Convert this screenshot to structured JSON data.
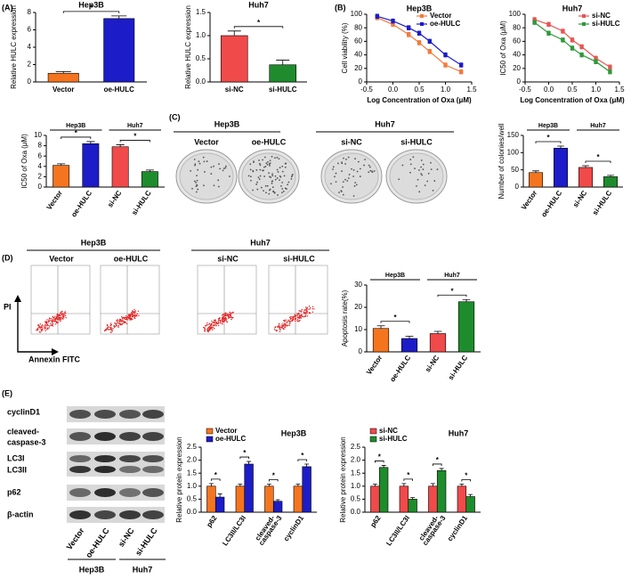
{
  "panel_labels": [
    "(A)",
    "(B)",
    "(C)",
    "(D)",
    "(E)"
  ],
  "colony": {
    "groups": [
      "Hep3B",
      "Huh7"
    ],
    "labels": [
      "Vector",
      "oe-HULC",
      "si-NC",
      "si-HULC"
    ]
  },
  "flow": {
    "groups": [
      "Hep3B",
      "Huh7"
    ],
    "labels": [
      "Vector",
      "oe-HULC",
      "si-NC",
      "si-HULC"
    ],
    "y_axis": "PI",
    "x_axis": "Annexin FITC"
  },
  "blot": {
    "proteins": [
      [
        "cyclinD1"
      ],
      [
        "cleaved-",
        "caspase-3"
      ],
      [
        "LC3I",
        "LC3II"
      ],
      [
        "p62"
      ],
      [
        "β-actin"
      ]
    ],
    "lanes": [
      "Vector",
      "oe-HULC",
      "si-NC",
      "si-HULC"
    ],
    "groups": [
      "Hep3B",
      "Huh7"
    ]
  },
  "chart_data": [
    {
      "type": "bar",
      "title": "Hep3B",
      "ylabel": "Relative HULC expression",
      "categories": [
        "Vector",
        "oe-HULC"
      ],
      "values": [
        1,
        7.3
      ],
      "errors": [
        0.2,
        0.3
      ],
      "colors": [
        "#f5751f",
        "#1c1cc8"
      ],
      "ylim": [
        0,
        8
      ],
      "yticks": [
        0,
        2,
        4,
        6,
        8
      ],
      "annotations": [
        "*"
      ]
    },
    {
      "type": "bar",
      "title": "Huh7",
      "ylabel": "Relative HULC expression",
      "categories": [
        "si-NC",
        "si-HULC"
      ],
      "values": [
        1,
        0.37
      ],
      "errors": [
        0.1,
        0.1
      ],
      "colors": [
        "#f04a4a",
        "#1e8c2c"
      ],
      "ylim": [
        0,
        1.5
      ],
      "yticks": [
        {
          "value": 0,
          "label": "0.0"
        },
        0.5,
        {
          "value": 1,
          "label": "1.0"
        },
        1.5
      ],
      "annotations": [
        "*"
      ]
    },
    {
      "type": "line",
      "title": "Hep3B",
      "xlabel": "Log Concentration of Oxa (μM)",
      "ylabel": "Cell viability (%)",
      "x": [
        -0.3,
        0,
        0.3,
        0.5,
        0.7,
        1,
        1.3
      ],
      "series": [
        {
          "name": "Vector",
          "color": "#f47a3c",
          "values": [
            95,
            85,
            70,
            58,
            45,
            25,
            15
          ],
          "errors": [
            3,
            3,
            3,
            3,
            3,
            3,
            3
          ]
        },
        {
          "name": "oe-HULC",
          "color": "#1c1cc8",
          "values": [
            97,
            90,
            80,
            72,
            60,
            40,
            25
          ],
          "errors": [
            3,
            3,
            3,
            3,
            3,
            3,
            3
          ]
        }
      ],
      "xlim": [
        -0.5,
        1.5
      ],
      "xticks": [
        -0.5,
        {
          "value": 0,
          "label": "0.0"
        },
        0.5,
        {
          "value": 1,
          "label": "1.0"
        },
        1.5
      ],
      "ylim": [
        0,
        100
      ],
      "yticks": [
        0,
        20,
        40,
        60,
        80,
        100
      ]
    },
    {
      "type": "line",
      "title": "Huh7",
      "xlabel": "Log Concentration of Oxa (μM)",
      "ylabel": "IC50 of Oxa (μM)",
      "x": [
        -0.3,
        0,
        0.3,
        0.5,
        0.7,
        1,
        1.3
      ],
      "series": [
        {
          "name": "si-NC",
          "color": "#e85555",
          "values": [
            92,
            85,
            75,
            62,
            52,
            35,
            22
          ],
          "errors": [
            3,
            3,
            3,
            3,
            3,
            3,
            3
          ]
        },
        {
          "name": "si-HULC",
          "color": "#2e9a3a",
          "values": [
            88,
            72,
            62,
            50,
            40,
            30,
            15
          ],
          "errors": [
            3,
            3,
            3,
            3,
            3,
            3,
            3
          ]
        }
      ],
      "xlim": [
        -0.5,
        1.5
      ],
      "xticks": [
        -0.5,
        {
          "value": 0,
          "label": "0.0"
        },
        0.5,
        {
          "value": 1,
          "label": "1.0"
        },
        1.5
      ],
      "ylim": [
        0,
        100
      ],
      "yticks": [
        0,
        20,
        40,
        60,
        80,
        100
      ]
    },
    {
      "type": "bar",
      "ylabel": "IC50 of Oxa (μM)",
      "categories": [
        "Vector",
        "oe-HULC",
        "si-NC",
        "si-HULC"
      ],
      "values": [
        4.2,
        8.4,
        7.8,
        3
      ],
      "errors": [
        0.3,
        0.4,
        0.4,
        0.3
      ],
      "colors": [
        "#f5751f",
        "#1c1cc8",
        "#f04a4a",
        "#1e8c2c"
      ],
      "ylim": [
        0,
        10
      ],
      "yticks": [
        0,
        2,
        4,
        6,
        8,
        10
      ],
      "groups": [
        "Hep3B",
        "Huh7"
      ],
      "annotations": [
        "*",
        "*"
      ]
    },
    {
      "type": "bar",
      "ylabel": "Number of colonies/well",
      "categories": [
        "Vector",
        "oe-HULC",
        "si-NC",
        "si-HULC"
      ],
      "values": [
        42,
        113,
        57,
        30
      ],
      "errors": [
        5,
        6,
        5,
        4
      ],
      "colors": [
        "#f5751f",
        "#1c1cc8",
        "#f04a4a",
        "#1e8c2c"
      ],
      "ylim": [
        0,
        150
      ],
      "yticks": [
        0,
        50,
        100,
        150
      ],
      "groups": [
        "Hep3B",
        "Huh7"
      ],
      "annotations": [
        "*",
        "*"
      ]
    },
    {
      "type": "bar",
      "ylabel": "Apoptosis rate(%)",
      "categories": [
        "Vector",
        "oe-HULC",
        "si-NC",
        "si-HULC"
      ],
      "values": [
        10.5,
        6,
        8.2,
        22.5
      ],
      "errors": [
        1.2,
        1,
        1,
        1
      ],
      "colors": [
        "#f5751f",
        "#1c1cc8",
        "#f04a4a",
        "#1e8c2c"
      ],
      "ylim": [
        0,
        30
      ],
      "yticks": [
        0,
        10,
        20,
        30
      ],
      "groups": [
        "Hep3B",
        "Huh7"
      ],
      "annotations": [
        "*",
        "*"
      ]
    },
    {
      "type": "bar",
      "title": "Hep3B",
      "ylabel": "Relative protein expression",
      "categories": [
        "p62",
        "LC3II/LC3I",
        [
          "cleaved-",
          "caspase-3"
        ],
        "cyclinD1"
      ],
      "series": [
        {
          "name": "Vector",
          "color": "#f5751f",
          "values": [
            1,
            1,
            1,
            1
          ],
          "errors": [
            0.1,
            0.08,
            0.08,
            0.08
          ]
        },
        {
          "name": "oe-HULC",
          "color": "#1c1cc8",
          "values": [
            0.58,
            1.85,
            0.42,
            1.75
          ],
          "errors": [
            0.12,
            0.1,
            0.06,
            0.1
          ]
        }
      ],
      "ylim": [
        0,
        2.5
      ],
      "yticks": [
        {
          "value": 0,
          "label": "0.0"
        },
        0.5,
        {
          "value": 1,
          "label": "1.0"
        },
        1.5,
        {
          "value": 2,
          "label": "2.0"
        },
        2.5
      ],
      "annotations": [
        "*",
        "*",
        "*",
        "*"
      ]
    },
    {
      "type": "bar",
      "title": "Huh7",
      "ylabel": "Relative protein expression",
      "categories": [
        "p62",
        "LC3II/LC3I",
        [
          "cleaved-",
          "caspase-3"
        ],
        "cyclinD1"
      ],
      "series": [
        {
          "name": "si-NC",
          "color": "#f04a4a",
          "values": [
            1,
            1,
            1,
            1
          ],
          "errors": [
            0.08,
            0.1,
            0.1,
            0.08
          ]
        },
        {
          "name": "si-HULC",
          "color": "#1e8c2c",
          "values": [
            1.72,
            0.5,
            1.6,
            0.6
          ],
          "errors": [
            0.08,
            0.06,
            0.08,
            0.08
          ]
        }
      ],
      "ylim": [
        0,
        2.5
      ],
      "yticks": [
        {
          "value": 0,
          "label": "0.0"
        },
        0.5,
        {
          "value": 1,
          "label": "1.0"
        },
        1.5,
        {
          "value": 2,
          "label": "2.0"
        },
        2.5
      ],
      "annotations": [
        "*",
        "*",
        "*",
        "*"
      ]
    }
  ]
}
